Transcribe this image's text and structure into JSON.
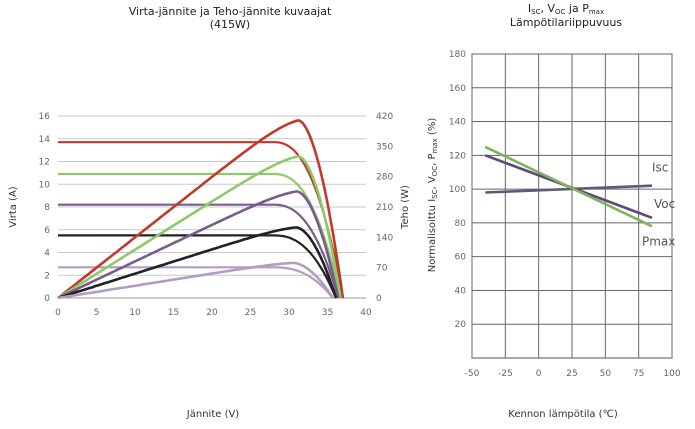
{
  "chart_data": [
    {
      "type": "line",
      "title": "Virta-jännite ja Teho-jännite kuvaajat",
      "subtitle": "(415W)",
      "xlabel": "Jännite (V)",
      "ylabel": "Virta (A)",
      "y2label": "Teho (W)",
      "xlim": [
        0,
        40
      ],
      "ylim": [
        0,
        16
      ],
      "y2lim": [
        0,
        420
      ],
      "x_ticks": [
        "0",
        "5",
        "10",
        "15",
        "20",
        "25",
        "30",
        "35",
        "40"
      ],
      "y_ticks": [
        "0",
        "2",
        "4",
        "6",
        "8",
        "10",
        "12",
        "14",
        "16"
      ],
      "y2_ticks": [
        "0",
        "70",
        "140",
        "210",
        "280",
        "350",
        "420"
      ],
      "grid": "horizontal",
      "series": [
        {
          "kind": "current",
          "color": "#c0392b",
          "isc": 13.7,
          "voc": 37.0,
          "vknee": 28.0
        },
        {
          "kind": "current",
          "color": "#8dc96a",
          "isc": 10.9,
          "voc": 36.7,
          "vknee": 28.0
        },
        {
          "kind": "current",
          "color": "#7a5c8c",
          "isc": 8.2,
          "voc": 36.4,
          "vknee": 28.0
        },
        {
          "kind": "current",
          "color": "#222222",
          "isc": 5.5,
          "voc": 36.1,
          "vknee": 28.0
        },
        {
          "kind": "current",
          "color": "#b49cc0",
          "isc": 2.7,
          "voc": 35.7,
          "vknee": 28.0
        },
        {
          "kind": "power",
          "color": "#c0392b",
          "pmax": 410,
          "vmp": 31.2,
          "voc": 37.0
        },
        {
          "kind": "power",
          "color": "#8dc96a",
          "pmax": 327,
          "vmp": 31.2,
          "voc": 36.7
        },
        {
          "kind": "power",
          "color": "#7a5c8c",
          "pmax": 246,
          "vmp": 31.0,
          "voc": 36.4
        },
        {
          "kind": "power",
          "color": "#222222",
          "pmax": 163,
          "vmp": 30.9,
          "voc": 36.1
        },
        {
          "kind": "power",
          "color": "#b49cc0",
          "pmax": 81,
          "vmp": 30.5,
          "voc": 35.7
        }
      ]
    },
    {
      "type": "line",
      "title_line1": "Isc, Voc ja Pmax",
      "title_line2": "Lämpötilariippuvuus",
      "xlabel": "Kennon lämpötila (℃)",
      "ylabel": "Normalisoittu Isc, Voc, Pmax (%)",
      "xlim": [
        -50,
        100
      ],
      "ylim": [
        0,
        180
      ],
      "x_ticks": [
        "-50",
        "-25",
        "0",
        "25",
        "50",
        "75",
        "100"
      ],
      "y_ticks": [
        "20",
        "40",
        "60",
        "80",
        "100",
        "120",
        "140",
        "160",
        "180"
      ],
      "grid": "both",
      "series": [
        {
          "name": "Isc",
          "color": "#5b5b7a",
          "x": [
            -40,
            85
          ],
          "y": [
            98,
            102
          ]
        },
        {
          "name": "Voc",
          "color": "#5b4a7a",
          "x": [
            -40,
            85
          ],
          "y": [
            120,
            83
          ]
        },
        {
          "name": "Pmax",
          "color": "#7fb35a",
          "x": [
            -40,
            85
          ],
          "y": [
            125,
            78
          ]
        }
      ]
    }
  ]
}
